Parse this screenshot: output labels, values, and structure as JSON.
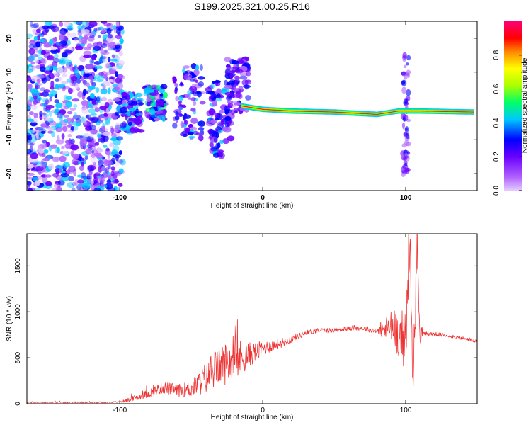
{
  "figure": {
    "title": "S199.2025.321.00.25.R16"
  },
  "chart_data": [
    {
      "type": "heatmap",
      "panel": "spectrogram",
      "xlabel": "Height of straight line (km)",
      "ylabel": "Frequency (Hz)",
      "xlim": [
        -165,
        150
      ],
      "ylim": [
        -25,
        25
      ],
      "xticks": [
        -100,
        0,
        100
      ],
      "xtick_labels": [
        "-100",
        "0",
        "100"
      ],
      "yticks": [
        -20,
        -10,
        0,
        10,
        20
      ],
      "ytick_labels": [
        "-20",
        "-10",
        "0",
        "10",
        "20"
      ],
      "colorbar": {
        "label": "Normalized spectral amplitude",
        "range": [
          0,
          1
        ],
        "ticks": [
          0.0,
          0.2,
          0.4,
          0.6,
          0.8
        ],
        "tick_labels": [
          "0.0",
          "0.2",
          "0.4",
          "0.6",
          "0.8"
        ],
        "colors": [
          "#e5ccff",
          "#b060ff",
          "#6a00ff",
          "#0000ff",
          "#00c8ff",
          "#00ff66",
          "#aaff00",
          "#ffff00",
          "#ff8800",
          "#ff0000",
          "#ff0077"
        ]
      },
      "features": {
        "noise_region": {
          "x": [
            -165,
            -98
          ],
          "y": [
            -25,
            25
          ],
          "amplitude": 0.15
        },
        "rising_blob_segments": [
          {
            "x": [
              -98,
              -85
            ],
            "y": [
              -8,
              4
            ],
            "amplitude": 0.35
          },
          {
            "x": [
              -82,
              -68
            ],
            "y": [
              -4,
              6
            ],
            "amplitude": 0.4
          },
          {
            "x": [
              -62,
              -42
            ],
            "y": [
              -10,
              12
            ],
            "amplitude": 0.3
          },
          {
            "x": [
              -38,
              -22
            ],
            "y": [
              -15,
              8
            ],
            "amplitude": 0.3
          },
          {
            "x": [
              -25,
              -10
            ],
            "y": [
              -2,
              14
            ],
            "amplitude": 0.25
          }
        ],
        "carrier_line": [
          {
            "x": -15,
            "y": 0.0
          },
          {
            "x": 0,
            "y": -1.0
          },
          {
            "x": 20,
            "y": -1.5
          },
          {
            "x": 50,
            "y": -1.8
          },
          {
            "x": 80,
            "y": -2.5
          },
          {
            "x": 95,
            "y": -1.5
          },
          {
            "x": 110,
            "y": -1.5
          },
          {
            "x": 148,
            "y": -1.8
          }
        ],
        "vertical_streak": {
          "x": 100,
          "y": [
            -20,
            15
          ],
          "amplitude": 0.2
        }
      }
    },
    {
      "type": "line",
      "panel": "snr",
      "xlabel": "Height of straight line (km)",
      "ylabel": "SNR (10 * v/v)",
      "xlim": [
        -165,
        150
      ],
      "ylim": [
        0,
        1850
      ],
      "xticks": [
        -100,
        0,
        100
      ],
      "xtick_labels": [
        "-100",
        "0",
        "100"
      ],
      "yticks": [
        0,
        500,
        1000,
        1500
      ],
      "ytick_labels": [
        "0",
        "500",
        "1000",
        "1500"
      ],
      "color": "#ee3333",
      "series": [
        {
          "name": "SNR",
          "x": [
            -165,
            -150,
            -130,
            -110,
            -100,
            -90,
            -80,
            -70,
            -60,
            -50,
            -40,
            -30,
            -20,
            -10,
            0,
            10,
            20,
            30,
            40,
            50,
            60,
            70,
            80,
            90,
            95,
            100,
            103,
            105,
            108,
            110,
            112,
            120,
            130,
            140,
            150
          ],
          "y": [
            15,
            15,
            15,
            15,
            20,
            60,
            110,
            180,
            140,
            160,
            280,
            420,
            470,
            530,
            600,
            650,
            700,
            770,
            800,
            800,
            820,
            820,
            790,
            830,
            760,
            700,
            1800,
            200,
            1700,
            780,
            760,
            760,
            740,
            710,
            680
          ],
          "noise_amplitude": [
            6,
            6,
            6,
            6,
            8,
            30,
            50,
            70,
            70,
            90,
            170,
            220,
            250,
            140,
            80,
            60,
            40,
            30,
            25,
            25,
            25,
            25,
            30,
            200,
            250,
            350,
            200,
            200,
            350,
            150,
            25,
            20,
            20,
            20,
            20
          ]
        }
      ]
    }
  ]
}
